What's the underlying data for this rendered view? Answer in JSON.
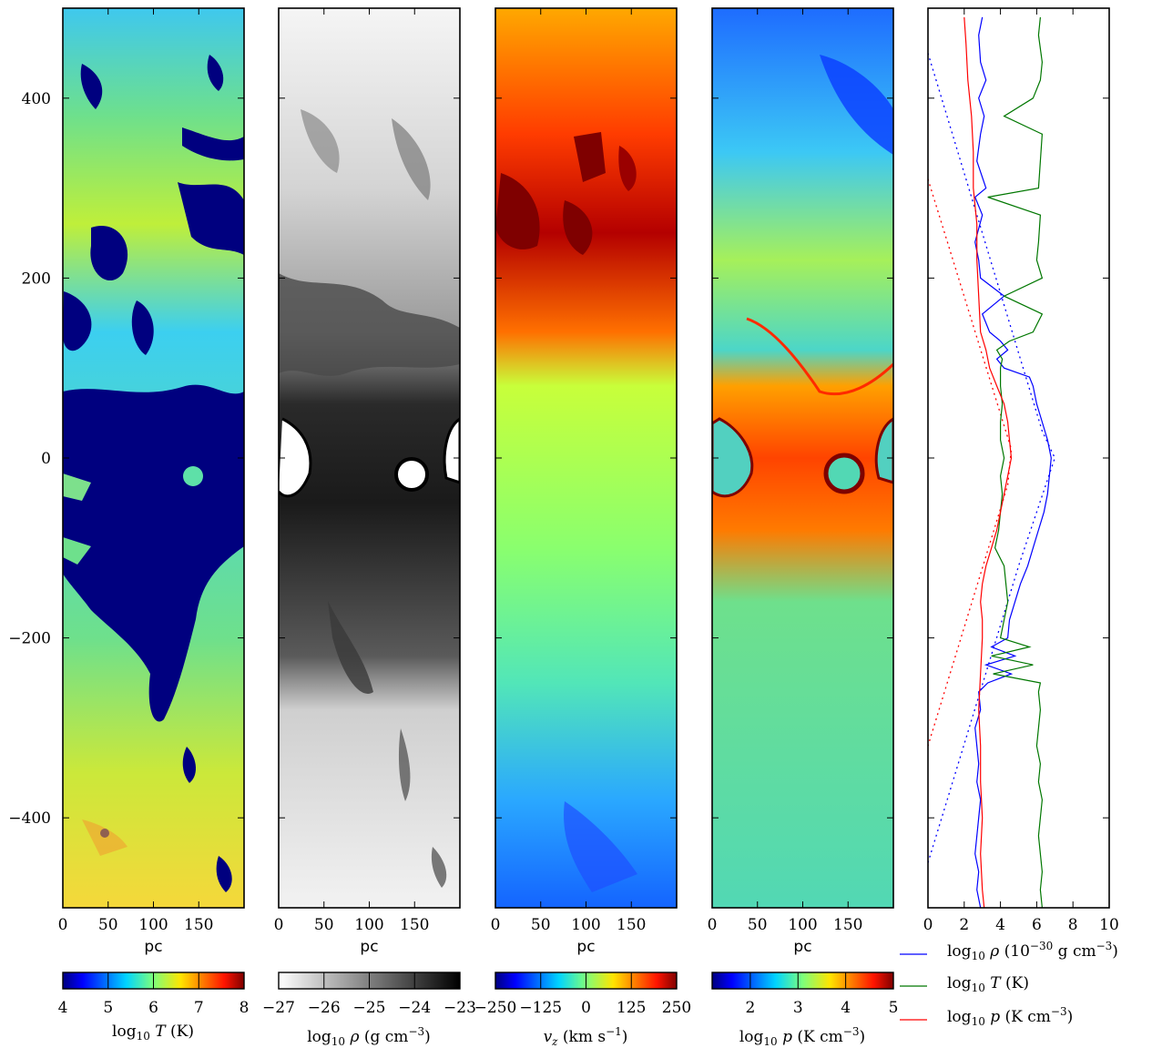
{
  "chart_data": [
    {
      "type": "heatmap",
      "panel": "temperature",
      "colormap": "jet",
      "xlabel": "pc",
      "xticks": [
        0,
        50,
        100,
        150
      ],
      "xlim": [
        0,
        200
      ],
      "ylim": [
        -500,
        500
      ],
      "yticks": [
        -400,
        -200,
        0,
        200,
        400
      ],
      "colorbar": {
        "label": "log10 T (K)",
        "ticks": [
          "4",
          "5",
          "6",
          "7",
          "8"
        ],
        "range": [
          4,
          8
        ]
      },
      "description": "Hot gas (6-7) above |z|>100 pc; cold gas (4) fills the midplane region from about -300 to 100 pc"
    },
    {
      "type": "heatmap",
      "panel": "density",
      "colormap": "gray_r",
      "xlabel": "pc",
      "xticks": [
        0,
        50,
        100,
        150
      ],
      "xlim": [
        0,
        200
      ],
      "colorbar": {
        "label": "log10 ρ (g cm−3)",
        "ticks": [
          "−27",
          "−26",
          "−25",
          "−24",
          "−23"
        ],
        "range": [
          -27,
          -23
        ]
      },
      "description": "Dense gas (−23) concentrated near midplane with bubbles near z≈0 at x≈20 and x≈145 pc"
    },
    {
      "type": "heatmap",
      "panel": "velocity",
      "colormap": "jet",
      "xlabel": "pc",
      "xticks": [
        0,
        50,
        100,
        150
      ],
      "xlim": [
        0,
        200
      ],
      "colorbar": {
        "label": "vz (km s−1)",
        "ticks": [
          "−250",
          "−125",
          "0",
          "125",
          "250"
        ],
        "range": [
          -250,
          250
        ]
      },
      "description": "Strong outflow (+250) at z 200–400 pc, weak inflow (−125) at z < −300 pc"
    },
    {
      "type": "heatmap",
      "panel": "pressure",
      "colormap": "jet",
      "xlabel": "pc",
      "xticks": [
        0,
        50,
        100,
        150
      ],
      "xlim": [
        0,
        200
      ],
      "colorbar": {
        "label": "log10 p (K cm−3)",
        "ticks": [
          "2",
          "3",
          "4",
          "5"
        ],
        "range": [
          1.2,
          5
        ]
      },
      "description": "High pressure (4-5) in the midplane shells around z≈0; low (2) at top"
    },
    {
      "type": "line",
      "panel": "profiles",
      "xlim": [
        0,
        10
      ],
      "xticks": [
        0,
        2,
        4,
        6,
        8,
        10
      ],
      "ylim": [
        -500,
        500
      ],
      "yticks": [
        -400,
        -200,
        0,
        200,
        400
      ],
      "legend_position": "bottom-right",
      "series": [
        {
          "name": "log10 ρ (10−30 g cm−3)",
          "color": "#0000ff",
          "z": [
            490,
            470,
            440,
            420,
            400,
            380,
            360,
            330,
            300,
            290,
            270,
            240,
            220,
            200,
            180,
            160,
            140,
            130,
            120,
            110,
            100,
            90,
            80,
            60,
            40,
            20,
            0,
            -20,
            -40,
            -60,
            -80,
            -100,
            -120,
            -140,
            -160,
            -180,
            -200,
            -210,
            -220,
            -230,
            -240,
            -250,
            -260,
            -280,
            -300,
            -320,
            -340,
            -360,
            -380,
            -400,
            -420,
            -440,
            -460,
            -480,
            -500
          ],
          "values": [
            3.0,
            2.8,
            2.9,
            3.2,
            2.8,
            3.1,
            2.9,
            2.7,
            3.2,
            2.6,
            3.0,
            2.6,
            2.8,
            2.9,
            4.2,
            3.0,
            3.4,
            4.0,
            4.4,
            3.8,
            4.2,
            5.6,
            5.8,
            6.0,
            6.3,
            6.6,
            6.8,
            6.7,
            6.6,
            6.4,
            6.1,
            5.8,
            5.5,
            5.1,
            4.8,
            4.5,
            4.4,
            3.5,
            4.8,
            3.2,
            4.6,
            3.3,
            2.8,
            2.9,
            2.6,
            2.7,
            2.8,
            2.7,
            2.9,
            2.8,
            2.7,
            2.6,
            2.8,
            2.7,
            2.9
          ]
        },
        {
          "name": "log10 T (K)",
          "color": "#007700",
          "z": [
            490,
            470,
            440,
            420,
            400,
            380,
            360,
            330,
            300,
            290,
            270,
            240,
            220,
            200,
            180,
            160,
            140,
            130,
            120,
            110,
            100,
            90,
            80,
            60,
            40,
            20,
            0,
            -20,
            -40,
            -60,
            -80,
            -100,
            -120,
            -140,
            -160,
            -180,
            -200,
            -210,
            -220,
            -230,
            -240,
            -250,
            -260,
            -280,
            -300,
            -320,
            -340,
            -360,
            -380,
            -400,
            -420,
            -440,
            -460,
            -480,
            -500
          ],
          "values": [
            6.2,
            6.1,
            6.3,
            6.2,
            5.8,
            4.2,
            6.3,
            6.2,
            6.1,
            3.3,
            6.2,
            6.1,
            6.0,
            6.3,
            4.2,
            6.3,
            5.8,
            4.5,
            3.8,
            4.1,
            4.0,
            4.0,
            4.0,
            4.1,
            4.0,
            4.0,
            4.2,
            4.0,
            4.1,
            4.0,
            3.9,
            3.7,
            4.2,
            4.3,
            4.4,
            4.2,
            4.0,
            5.6,
            3.5,
            5.8,
            3.6,
            6.2,
            6.1,
            6.2,
            6.1,
            6.0,
            6.2,
            6.1,
            6.3,
            6.2,
            6.1,
            6.2,
            6.3,
            6.2,
            6.3
          ]
        },
        {
          "name": "log10 p (K cm−3)",
          "color": "#ff0000",
          "z": [
            490,
            460,
            420,
            380,
            340,
            300,
            260,
            220,
            180,
            140,
            120,
            100,
            80,
            60,
            40,
            20,
            0,
            -20,
            -40,
            -60,
            -80,
            -100,
            -120,
            -140,
            -160,
            -180,
            -200,
            -240,
            -280,
            -320,
            -360,
            -400,
            -440,
            -480,
            -500
          ],
          "values": [
            2.0,
            2.1,
            2.2,
            2.4,
            2.5,
            2.5,
            2.7,
            2.7,
            2.8,
            2.9,
            3.2,
            3.4,
            3.8,
            4.2,
            4.4,
            4.5,
            4.6,
            4.4,
            4.2,
            4.0,
            3.8,
            3.5,
            3.2,
            3.0,
            2.9,
            3.0,
            3.0,
            2.9,
            2.8,
            2.9,
            2.9,
            3.0,
            2.9,
            3.0,
            3.1
          ]
        }
      ],
      "dotted_reference_lines": [
        {
          "color": "#0000ff",
          "points": [
            [
              0,
              450
            ],
            [
              6.3,
              30
            ],
            [
              7.0,
              0
            ],
            [
              5.0,
              -120
            ],
            [
              0,
              -450
            ]
          ]
        },
        {
          "color": "#ff0000",
          "points": [
            [
              0,
              310
            ],
            [
              4.6,
              10
            ],
            [
              4.4,
              -30
            ],
            [
              0,
              -320
            ]
          ]
        }
      ]
    }
  ]
}
